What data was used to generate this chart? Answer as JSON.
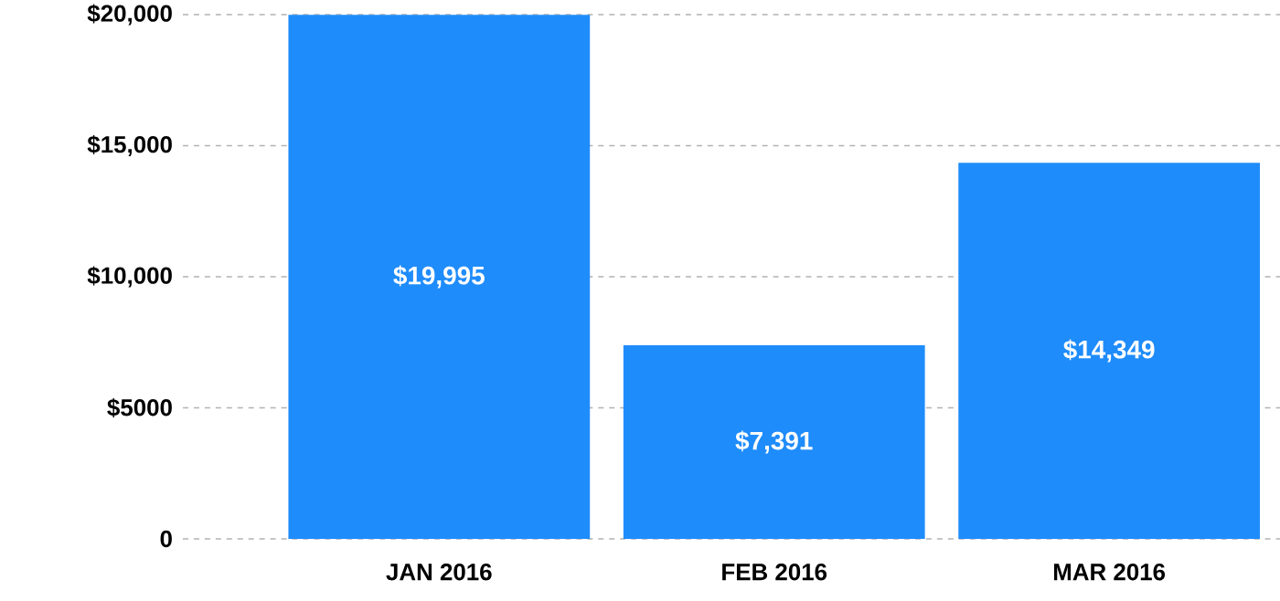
{
  "chart_data": {
    "type": "bar",
    "categories": [
      "JAN 2016",
      "FEB 2016",
      "MAR 2016"
    ],
    "values": [
      19995,
      7391,
      14349
    ],
    "value_labels": [
      "$19,995",
      "$7,391",
      "$14,349"
    ],
    "color": "#1f8cfb",
    "ylim": [
      0,
      20000
    ],
    "yticks": [
      0,
      {
        "value": 5000,
        "label": "$5000"
      },
      {
        "value": 10000,
        "label": "$10,000"
      },
      {
        "value": 15000,
        "label": "$15,000"
      },
      {
        "value": 20000,
        "label": "$20,000"
      }
    ],
    "grid": "y"
  }
}
